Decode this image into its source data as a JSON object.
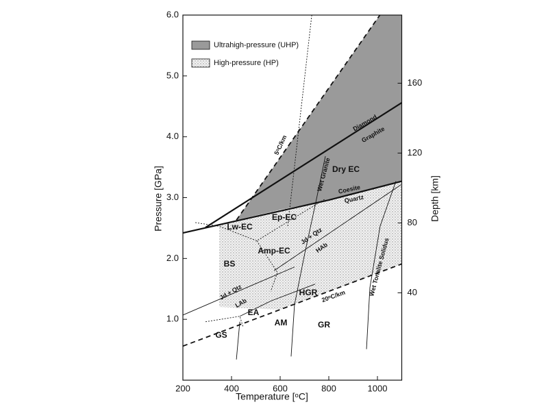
{
  "chart_data": {
    "type": "phase-diagram",
    "xlabel": "Temperature [ᵒC]",
    "ylabel": "Pressure [GPa]",
    "y2label": "Depth [km]",
    "xlim": [
      200,
      1100
    ],
    "xticks": [
      200,
      400,
      600,
      800,
      1000
    ],
    "ylim": [
      0,
      6
    ],
    "yticks": [
      {
        "value": 1,
        "label": "1.0"
      },
      {
        "value": 2,
        "label": "2.0"
      },
      {
        "value": 3,
        "label": "3.0"
      },
      {
        "value": 4,
        "label": "4.0"
      },
      {
        "value": 5,
        "label": "5.0"
      },
      {
        "value": 6,
        "label": "6.0"
      }
    ],
    "y2lim": [
      -10,
      199
    ],
    "y2ticks": [
      40,
      80,
      120,
      160
    ],
    "regions": [
      {
        "name": "Ultrahigh-pressure (UHP)",
        "fill": "gray",
        "color": "#9a9a9a",
        "x": [
          420,
          1010,
          1100,
          1100,
          800,
          600,
          420
        ],
        "y": [
          2.63,
          6,
          6,
          3.27,
          2.96,
          2.8,
          2.63
        ]
      },
      {
        "name": "High-pressure (HP)",
        "fill": "stipple",
        "color": "#777777",
        "x": [
          350,
          600,
          800,
          1100,
          1100,
          600,
          350
        ],
        "y": [
          2.56,
          2.8,
          2.96,
          3.27,
          1.91,
          1.16,
          1.2
        ]
      }
    ],
    "boundaries": [
      {
        "style": "bold",
        "x": [
          293,
          1100
        ],
        "y": [
          2.51,
          4.56
        ]
      },
      {
        "style": "bold",
        "x": [
          200,
          800,
          1100
        ],
        "y": [
          2.42,
          2.96,
          3.27
        ]
      },
      {
        "style": "dashed",
        "x": [
          420,
          1010
        ],
        "y": [
          2.63,
          6
        ]
      },
      {
        "style": "dashed",
        "x": [
          200,
          1100
        ],
        "y": [
          0.56,
          1.91
        ]
      },
      {
        "style": "dotted",
        "x": [
          730,
          631
        ],
        "y": [
          6,
          2.53
        ]
      },
      {
        "style": "thin",
        "x": [
          786,
          749,
          701,
          659,
          645
        ],
        "y": [
          3.68,
          2.97,
          2.08,
          1.24,
          0.39
        ]
      },
      {
        "style": "thin",
        "x": [
          1076,
          1011,
          969,
          955
        ],
        "y": [
          3.27,
          2.53,
          1.52,
          0.51
        ]
      },
      {
        "style": "thin",
        "x": [
          575,
          1096
        ],
        "y": [
          1.8,
          3.21
        ]
      },
      {
        "style": "thin",
        "x": [
          200,
          659
        ],
        "y": [
          1.07,
          1.86
        ]
      },
      {
        "style": "dotted",
        "x": [
          251,
          349,
          504,
          687,
          786
        ],
        "y": [
          2.59,
          2.53,
          2.29,
          2.74,
          2.98
        ]
      },
      {
        "style": "dotted",
        "x": [
          504,
          589,
          561
        ],
        "y": [
          2.29,
          1.77,
          1.46
        ]
      },
      {
        "style": "dotted",
        "x": [
          293,
          434,
          448
        ],
        "y": [
          0.96,
          1.05,
          0.87
        ]
      },
      {
        "style": "thin",
        "x": [
          434,
          561,
          744
        ],
        "y": [
          1.05,
          1.3,
          1.58
        ]
      },
      {
        "style": "thin",
        "x": [
          434,
          420
        ],
        "y": [
          0.96,
          0.34
        ]
      }
    ],
    "labels": [
      "Dry EC",
      "Ep-EC",
      "Lw-EC",
      "Amp-EC",
      "BS",
      "HGR",
      "EA",
      "AM",
      "GR",
      "GS",
      "Diamond",
      "Graphite",
      "Coesite",
      "Quartz",
      "5ᵒC/km",
      "20ᵒC/km",
      "Wet Granite",
      "Wet Tonalite Solidus",
      "Jd + Qtz",
      "HAb",
      "Jd + Qtz",
      "LAb"
    ]
  }
}
